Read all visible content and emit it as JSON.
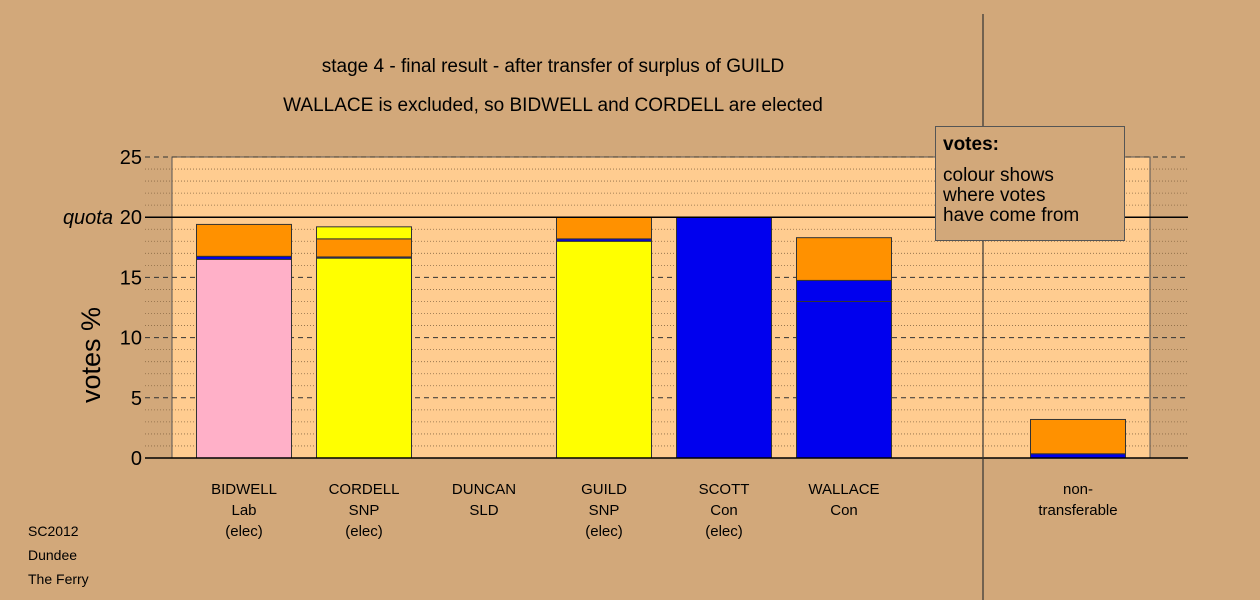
{
  "chart_data": {
    "type": "bar",
    "title": "stage 4 - final result - after transfer of surplus of GUILD",
    "subtitle": "WALLACE is excluded, so BIDWELL and CORDELL are elected",
    "ylabel": "votes %",
    "ylim": [
      0,
      25
    ],
    "yticks": [
      0,
      5,
      10,
      15,
      20,
      25
    ],
    "quota": 20,
    "quota_label": "quota",
    "grid": true,
    "colors": {
      "pink": "#ffb0c8",
      "yellow": "#ffff00",
      "blue": "#0000ee",
      "orange": "#ff9100"
    },
    "categories": [
      {
        "lines": [
          "BIDWELL",
          "Lab",
          "(elec)"
        ],
        "segments": [
          {
            "color": "pink",
            "value": 16.5
          },
          {
            "color": "blue",
            "value": 0.25
          },
          {
            "color": "orange",
            "value": 2.65
          }
        ]
      },
      {
        "lines": [
          "CORDELL",
          "SNP",
          "(elec)"
        ],
        "segments": [
          {
            "color": "yellow",
            "value": 16.6
          },
          {
            "color": "blue",
            "value": 0.1
          },
          {
            "color": "orange",
            "value": 1.5
          },
          {
            "color": "yellow",
            "value": 1.0
          }
        ]
      },
      {
        "lines": [
          "DUNCAN",
          "SLD"
        ],
        "segments": []
      },
      {
        "lines": [
          "GUILD",
          "SNP",
          "(elec)"
        ],
        "segments": [
          {
            "color": "yellow",
            "value": 18.0
          },
          {
            "color": "blue",
            "value": 0.2
          },
          {
            "color": "orange",
            "value": 1.8
          }
        ]
      },
      {
        "lines": [
          "SCOTT",
          "Con",
          "(elec)"
        ],
        "segments": [
          {
            "color": "blue",
            "value": 20.0
          }
        ]
      },
      {
        "lines": [
          "WALLACE",
          "Con"
        ],
        "segments": [
          {
            "color": "blue",
            "value": 13.0
          },
          {
            "color": "blue",
            "value": 1.75
          },
          {
            "color": "orange",
            "value": 3.55
          }
        ]
      }
    ],
    "nontransferable": {
      "lines": [
        "non-",
        "transferable"
      ],
      "segments": [
        {
          "color": "blue",
          "value": 0.35
        },
        {
          "color": "orange",
          "value": 2.85
        }
      ]
    }
  },
  "legend": {
    "heading": "votes:",
    "lines": [
      "colour shows",
      "where votes",
      "have come from"
    ]
  },
  "credits": [
    "SC2012",
    "Dundee",
    "The Ferry"
  ]
}
